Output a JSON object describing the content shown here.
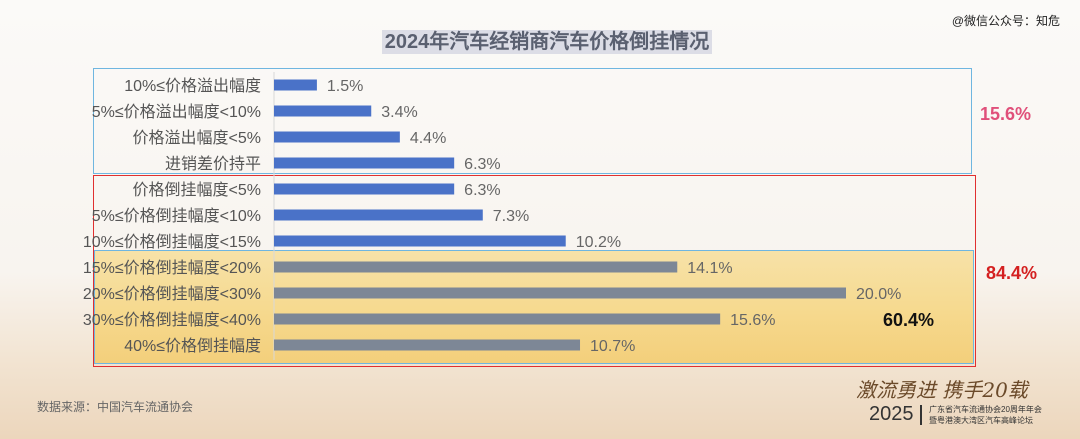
{
  "watermark": "@微信公众号：知危",
  "title": "2024年汽车经销商汽车价格倒挂情况",
  "chart_data": {
    "type": "bar",
    "orientation": "horizontal",
    "title": "2024年汽车经销商汽车价格倒挂情况",
    "xlabel": "",
    "ylabel": "",
    "xlim": [
      0,
      20.5
    ],
    "grid": false,
    "categories": [
      "10%≤价格溢出幅度",
      "5%≤价格溢出幅度<10%",
      "价格溢出幅度<5%",
      "进销差价持平",
      "价格倒挂幅度<5%",
      "5%≤价格倒挂幅度<10%",
      "10%≤价格倒挂幅度<15%",
      "15%≤价格倒挂幅度<20%",
      "20%≤价格倒挂幅度<30%",
      "30%≤价格倒挂幅度<40%",
      "40%≤价格倒挂幅度"
    ],
    "values": [
      1.5,
      3.4,
      4.4,
      6.3,
      6.3,
      7.3,
      10.2,
      14.1,
      20.0,
      15.6,
      10.7
    ],
    "value_labels": [
      "1.5%",
      "3.4%",
      "4.4%",
      "6.3%",
      "6.3%",
      "7.3%",
      "10.2%",
      "14.1%",
      "20.0%",
      "15.6%",
      "10.7%"
    ],
    "bar_colors": [
      "#4a72c8",
      "#4a72c8",
      "#4a72c8",
      "#4a72c8",
      "#4a72c8",
      "#4a72c8",
      "#4a72c8",
      "#7d8796",
      "#7d8796",
      "#7d8796",
      "#7d8796"
    ],
    "group_totals": [
      {
        "label": "15.6%",
        "rows": "0-3",
        "color": "#e0507a"
      },
      {
        "label": "84.4%",
        "rows": "4-10",
        "color": "#d42020"
      },
      {
        "label": "60.4%",
        "rows": "7-10",
        "color": "#111111"
      }
    ]
  },
  "source": "数据来源：中国汽车流通协会",
  "logo": {
    "slogan": "激流勇进 携手20载",
    "year": "2025",
    "line1": "广东省汽车流通协会20周年年会",
    "line2": "暨粤港澳大湾区汽车高峰论坛"
  }
}
